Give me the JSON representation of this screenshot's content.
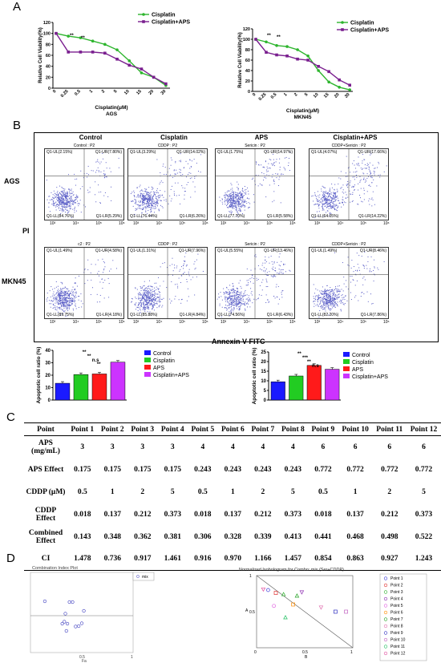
{
  "panels": {
    "A": "A",
    "B": "B",
    "C": "C",
    "D": "D"
  },
  "panelA": {
    "ylabel": "Relative Cell Viability(%)",
    "xlabel": "Cisplatin(μM)",
    "x_ticks": [
      "0",
      "0.25",
      "0.5",
      "1",
      "2",
      "5",
      "10",
      "15",
      "20",
      "30"
    ],
    "y_ticks": [
      "0",
      "20",
      "40",
      "60",
      "80",
      "100",
      "120"
    ],
    "legend": [
      "Cisplatin",
      "Cisplatin+APS"
    ],
    "left_cell": "AGS",
    "right_cell": "MKN45"
  },
  "panelB": {
    "col_titles": [
      "Control",
      "Cisplatin",
      "APS",
      "Cisplatin+APS"
    ],
    "row_labels": [
      "AGS",
      "MKN45"
    ],
    "y_axis": "PI",
    "x_axis": "Annexin V-FITC",
    "axis_ticks": [
      "10³",
      "10⁴",
      "10⁵",
      "10⁶"
    ],
    "ags": [
      {
        "gate": "Control : P2",
        "ul": "Q1-UL(2.15%)",
        "ur": "Q1-UR(7.80%)",
        "ll": "Q1-LL(84.76%)",
        "lr": "Q1-LR(5.29%)"
      },
      {
        "gate": "CDDP : P2",
        "ul": "Q1-UL(3.29%)",
        "ur": "Q1-UR(14.02%)",
        "ll": "Q1-LL(76.44%)",
        "lr": "Q1-LR(6.26%)"
      },
      {
        "gate": "Sericin : P2",
        "ul": "Q1-UL(1.75%)",
        "ur": "Q1-UR(14.97%)",
        "ll": "Q1-LL(77.70%)",
        "lr": "Q1-LR(5.58%)"
      },
      {
        "gate": "CDDP+Sericin : P2",
        "ul": "Q1-UL(4.07%)",
        "ur": "Q1-UR(17.66%)",
        "ll": "Q1-LL(64.05%)",
        "lr": "Q1-LR(14.22%)"
      }
    ],
    "mkn": [
      {
        "gate": "c2 : P2",
        "ul": "Q1-UL(1.49%)",
        "ur": "Q1-UR(4.58%)",
        "ll": "Q1-LL(89.75%)",
        "lr": "Q1-LR(4.18%)"
      },
      {
        "gate": "CDDP : P2",
        "ul": "Q1-UL(1.31%)",
        "ur": "Q1-UR(7.96%)",
        "ll": "Q1-LL(85.88%)",
        "lr": "Q1-LR(4.84%)"
      },
      {
        "gate": "Sericin : P2",
        "ul": "Q1-UL(5.55%)",
        "ur": "Q1-UR(13.46%)",
        "ll": "Q1-LL(74.56%)",
        "lr": "Q1-LR(6.43%)"
      },
      {
        "gate": "CDDP+Sericin : P2",
        "ul": "Q1-UL(1.49%)",
        "ur": "Q1-UR(8.46%)",
        "ll": "Q1-LL(82.20%)",
        "lr": "Q1-LR(7.86%)"
      }
    ],
    "bar_ylabel": "Apoptotic cell ratio (%)",
    "bar_legend": [
      "Control",
      "Cisplatin",
      "APS",
      "Cisplatin+APS"
    ],
    "sig_left": [
      "**",
      "**",
      "n.s",
      "**"
    ],
    "sig_right": [
      "**",
      "***",
      "**",
      "n.s"
    ]
  },
  "colors": {
    "control": "#1a1aff",
    "cisplatin": "#22cc22",
    "aps": "#ff1a1a",
    "combo": "#cc33ff",
    "green_line": "#2db52d",
    "purple_line": "#7a1f8f",
    "dots": "#5b5fc7"
  },
  "chart_data": [
    {
      "type": "line",
      "title": "AGS",
      "xlabel": "Cisplatin(μM)",
      "ylabel": "Relative Cell Viability(%)",
      "categories": [
        "0",
        "0.25",
        "0.5",
        "1",
        "2",
        "5",
        "10",
        "15",
        "20",
        "30"
      ],
      "ylim": [
        0,
        120
      ],
      "series": [
        {
          "name": "Cisplatin",
          "values": [
            100,
            95,
            92,
            86,
            80,
            70,
            50,
            28,
            20,
            5
          ]
        },
        {
          "name": "Cisplatin+APS",
          "values": [
            100,
            66,
            66,
            66,
            64,
            53,
            42,
            35,
            20,
            8
          ]
        }
      ]
    },
    {
      "type": "line",
      "title": "MKN45",
      "xlabel": "Cisplatin(μM)",
      "ylabel": "Relative Cell Viability(%)",
      "categories": [
        "0",
        "0.25",
        "0.5",
        "1",
        "2",
        "5",
        "10",
        "15",
        "20",
        "30"
      ],
      "ylim": [
        0,
        120
      ],
      "series": [
        {
          "name": "Cisplatin",
          "values": [
            100,
            95,
            88,
            86,
            80,
            68,
            40,
            18,
            8,
            3
          ]
        },
        {
          "name": "Cisplatin+APS",
          "values": [
            100,
            75,
            70,
            68,
            62,
            60,
            48,
            38,
            22,
            12
          ]
        }
      ]
    },
    {
      "type": "bar",
      "title": "",
      "ylabel": "Apoptotic cell ratio (%)",
      "categories": [
        "Control",
        "Cisplatin",
        "APS",
        "Cisplatin+APS"
      ],
      "ylim": [
        0,
        40
      ],
      "y_ticks": [
        "0",
        "10",
        "20",
        "30",
        "40"
      ],
      "values": [
        13.5,
        20.5,
        21.0,
        30.5
      ]
    },
    {
      "type": "bar",
      "title": "",
      "ylabel": "Apoptotic cell ratio (%)",
      "categories": [
        "Control",
        "Cisplatin",
        "APS",
        "Cisplatin+APS"
      ],
      "ylim": [
        0,
        25
      ],
      "y_ticks": [
        "0",
        "5",
        "10",
        "15",
        "20",
        "25"
      ],
      "values": [
        9.5,
        12.5,
        18.0,
        16.0
      ]
    },
    {
      "type": "scatter",
      "title": "Combination Index Plot",
      "legend": [
        "mix"
      ],
      "x_ticks": [
        "0.5",
        "1"
      ],
      "xlabel": "Fa",
      "points": [
        [
          0.14,
          1.48
        ],
        [
          0.35,
          0.74
        ],
        [
          0.36,
          0.92
        ],
        [
          0.38,
          1.46
        ],
        [
          0.31,
          0.92
        ],
        [
          0.33,
          0.97
        ],
        [
          0.34,
          1.17
        ],
        [
          0.41,
          1.46
        ],
        [
          0.44,
          0.85
        ],
        [
          0.47,
          0.86
        ],
        [
          0.5,
          0.93
        ],
        [
          0.52,
          1.24
        ]
      ]
    },
    {
      "type": "scatter",
      "title": "Normalized Isobologram for Combo: mix (Ser+CDDP)",
      "xlabel": "B",
      "ylabel": "A",
      "x_ticks": [
        "0",
        "0.5",
        "1"
      ],
      "y_ticks": [
        "0.5",
        "1"
      ],
      "points": [
        [
          0.12,
          0.8
        ],
        [
          0.2,
          0.76
        ],
        [
          0.28,
          0.74
        ],
        [
          0.47,
          0.77
        ],
        [
          0.18,
          0.58
        ],
        [
          0.38,
          0.6
        ],
        [
          0.42,
          0.72
        ],
        [
          0.67,
          0.56
        ],
        [
          0.82,
          0.5
        ],
        [
          0.93,
          0.5
        ],
        [
          0.3,
          0.42
        ],
        [
          0.07,
          0.81
        ]
      ],
      "legend": [
        "Point 1",
        "Point 2",
        "Point 3",
        "Point 4",
        "Point 5",
        "Point 6",
        "Point 7",
        "Point 8",
        "Point 9",
        "Point 10",
        "Point 11",
        "Point 12"
      ]
    }
  ],
  "table": {
    "header": [
      "Point",
      "Point 1",
      "Point 2",
      "Point 3",
      "Point 4",
      "Point 5",
      "Point 6",
      "Point 7",
      "Point 8",
      "Point 9",
      "Point 10",
      "Point 11",
      "Point 12"
    ],
    "rows": [
      [
        "APS (mg/mL)",
        "3",
        "3",
        "3",
        "3",
        "4",
        "4",
        "4",
        "4",
        "6",
        "6",
        "6",
        "6"
      ],
      [
        "APS Effect",
        "0.175",
        "0.175",
        "0.175",
        "0.175",
        "0.243",
        "0.243",
        "0.243",
        "0.243",
        "0.772",
        "0.772",
        "0.772",
        "0.772"
      ],
      [
        "CDDP (μM)",
        "0.5",
        "1",
        "2",
        "5",
        "0.5",
        "1",
        "2",
        "5",
        "0.5",
        "1",
        "2",
        "5"
      ],
      [
        "CDDP Effect",
        "0.018",
        "0.137",
        "0.212",
        "0.373",
        "0.018",
        "0.137",
        "0.212",
        "0.373",
        "0.018",
        "0.137",
        "0.212",
        "0.373"
      ],
      [
        "Combined Effect",
        "0.143",
        "0.348",
        "0.362",
        "0.381",
        "0.306",
        "0.328",
        "0.339",
        "0.413",
        "0.441",
        "0.468",
        "0.498",
        "0.522"
      ],
      [
        "CI",
        "1.478",
        "0.736",
        "0.917",
        "1.461",
        "0.916",
        "0.970",
        "1.166",
        "1.457",
        "0.854",
        "0.863",
        "0.927",
        "1.243"
      ]
    ]
  }
}
